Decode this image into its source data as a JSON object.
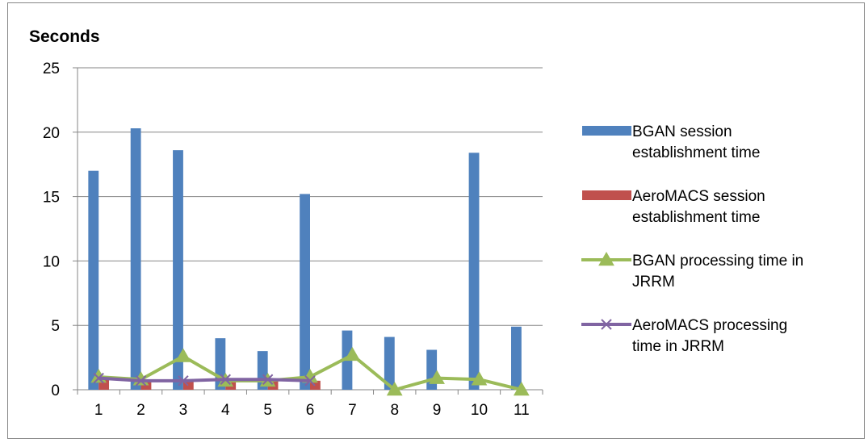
{
  "chart_data": {
    "type": "bar",
    "title": "Seconds",
    "categories": [
      "1",
      "2",
      "3",
      "4",
      "5",
      "6",
      "7",
      "8",
      "9",
      "10",
      "11"
    ],
    "ylim": [
      0,
      25
    ],
    "yticks": [
      0,
      5,
      10,
      15,
      20,
      25
    ],
    "grid": true,
    "legend_position": "right",
    "series": [
      {
        "name": "BGAN session establishment time",
        "kind": "bar",
        "color": "#4f81bd",
        "values": [
          17.0,
          20.3,
          18.6,
          4.0,
          3.0,
          15.2,
          4.6,
          4.1,
          3.1,
          18.4,
          4.9
        ]
      },
      {
        "name": "AeroMACS session establishment time",
        "kind": "bar",
        "color": "#c0504d",
        "values": [
          0.8,
          0.7,
          0.8,
          0.7,
          0.8,
          0.7,
          null,
          null,
          null,
          null,
          null
        ]
      },
      {
        "name": "BGAN processing time in JRRM",
        "kind": "line",
        "marker": "triangle",
        "color": "#9bbb59",
        "values": [
          1.0,
          0.8,
          2.6,
          0.7,
          0.7,
          1.0,
          2.7,
          0.0,
          0.9,
          0.8,
          0.0
        ]
      },
      {
        "name": "AeroMACS processing time in JRRM",
        "kind": "line",
        "marker": "x",
        "color": "#8064a2",
        "values": [
          0.9,
          0.7,
          0.7,
          0.8,
          0.8,
          0.7,
          null,
          null,
          null,
          null,
          null
        ]
      }
    ]
  },
  "legend": {
    "items": [
      {
        "lines": [
          "BGAN session",
          "establishment time"
        ]
      },
      {
        "lines": [
          "AeroMACS session",
          "establishment time"
        ]
      },
      {
        "lines": [
          "BGAN processing time in",
          "JRRM"
        ]
      },
      {
        "lines": [
          "AeroMACS processing",
          "time in JRRM"
        ]
      }
    ]
  }
}
